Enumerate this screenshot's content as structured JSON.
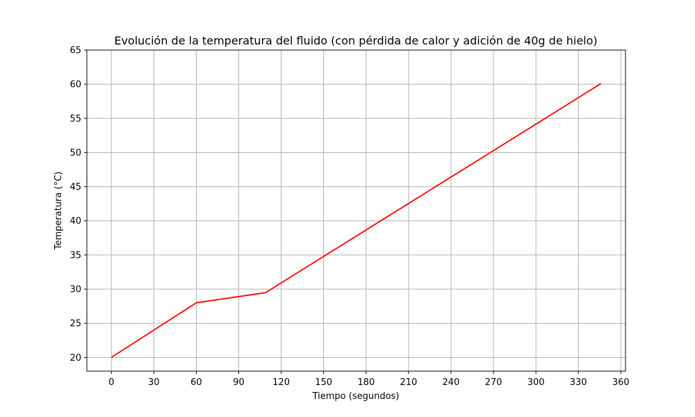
{
  "chart_data": {
    "type": "line",
    "title": "Evolución de la temperatura del fluido (con pérdida de calor y adición de 40g de hielo)",
    "xlabel": "Tiempo (segundos)",
    "ylabel": "Temperatura (°C)",
    "xlim": [
      -17.3,
      363.3
    ],
    "ylim": [
      18,
      65
    ],
    "xticks": [
      0,
      30,
      60,
      90,
      120,
      150,
      180,
      210,
      240,
      270,
      300,
      330,
      360
    ],
    "yticks": [
      20,
      25,
      30,
      35,
      40,
      45,
      50,
      55,
      60,
      65
    ],
    "grid": true,
    "series": [
      {
        "color": "#ff0000",
        "x": [
          0,
          60,
          109,
          346
        ],
        "y": [
          20,
          28,
          29.5,
          60.1
        ]
      }
    ]
  }
}
